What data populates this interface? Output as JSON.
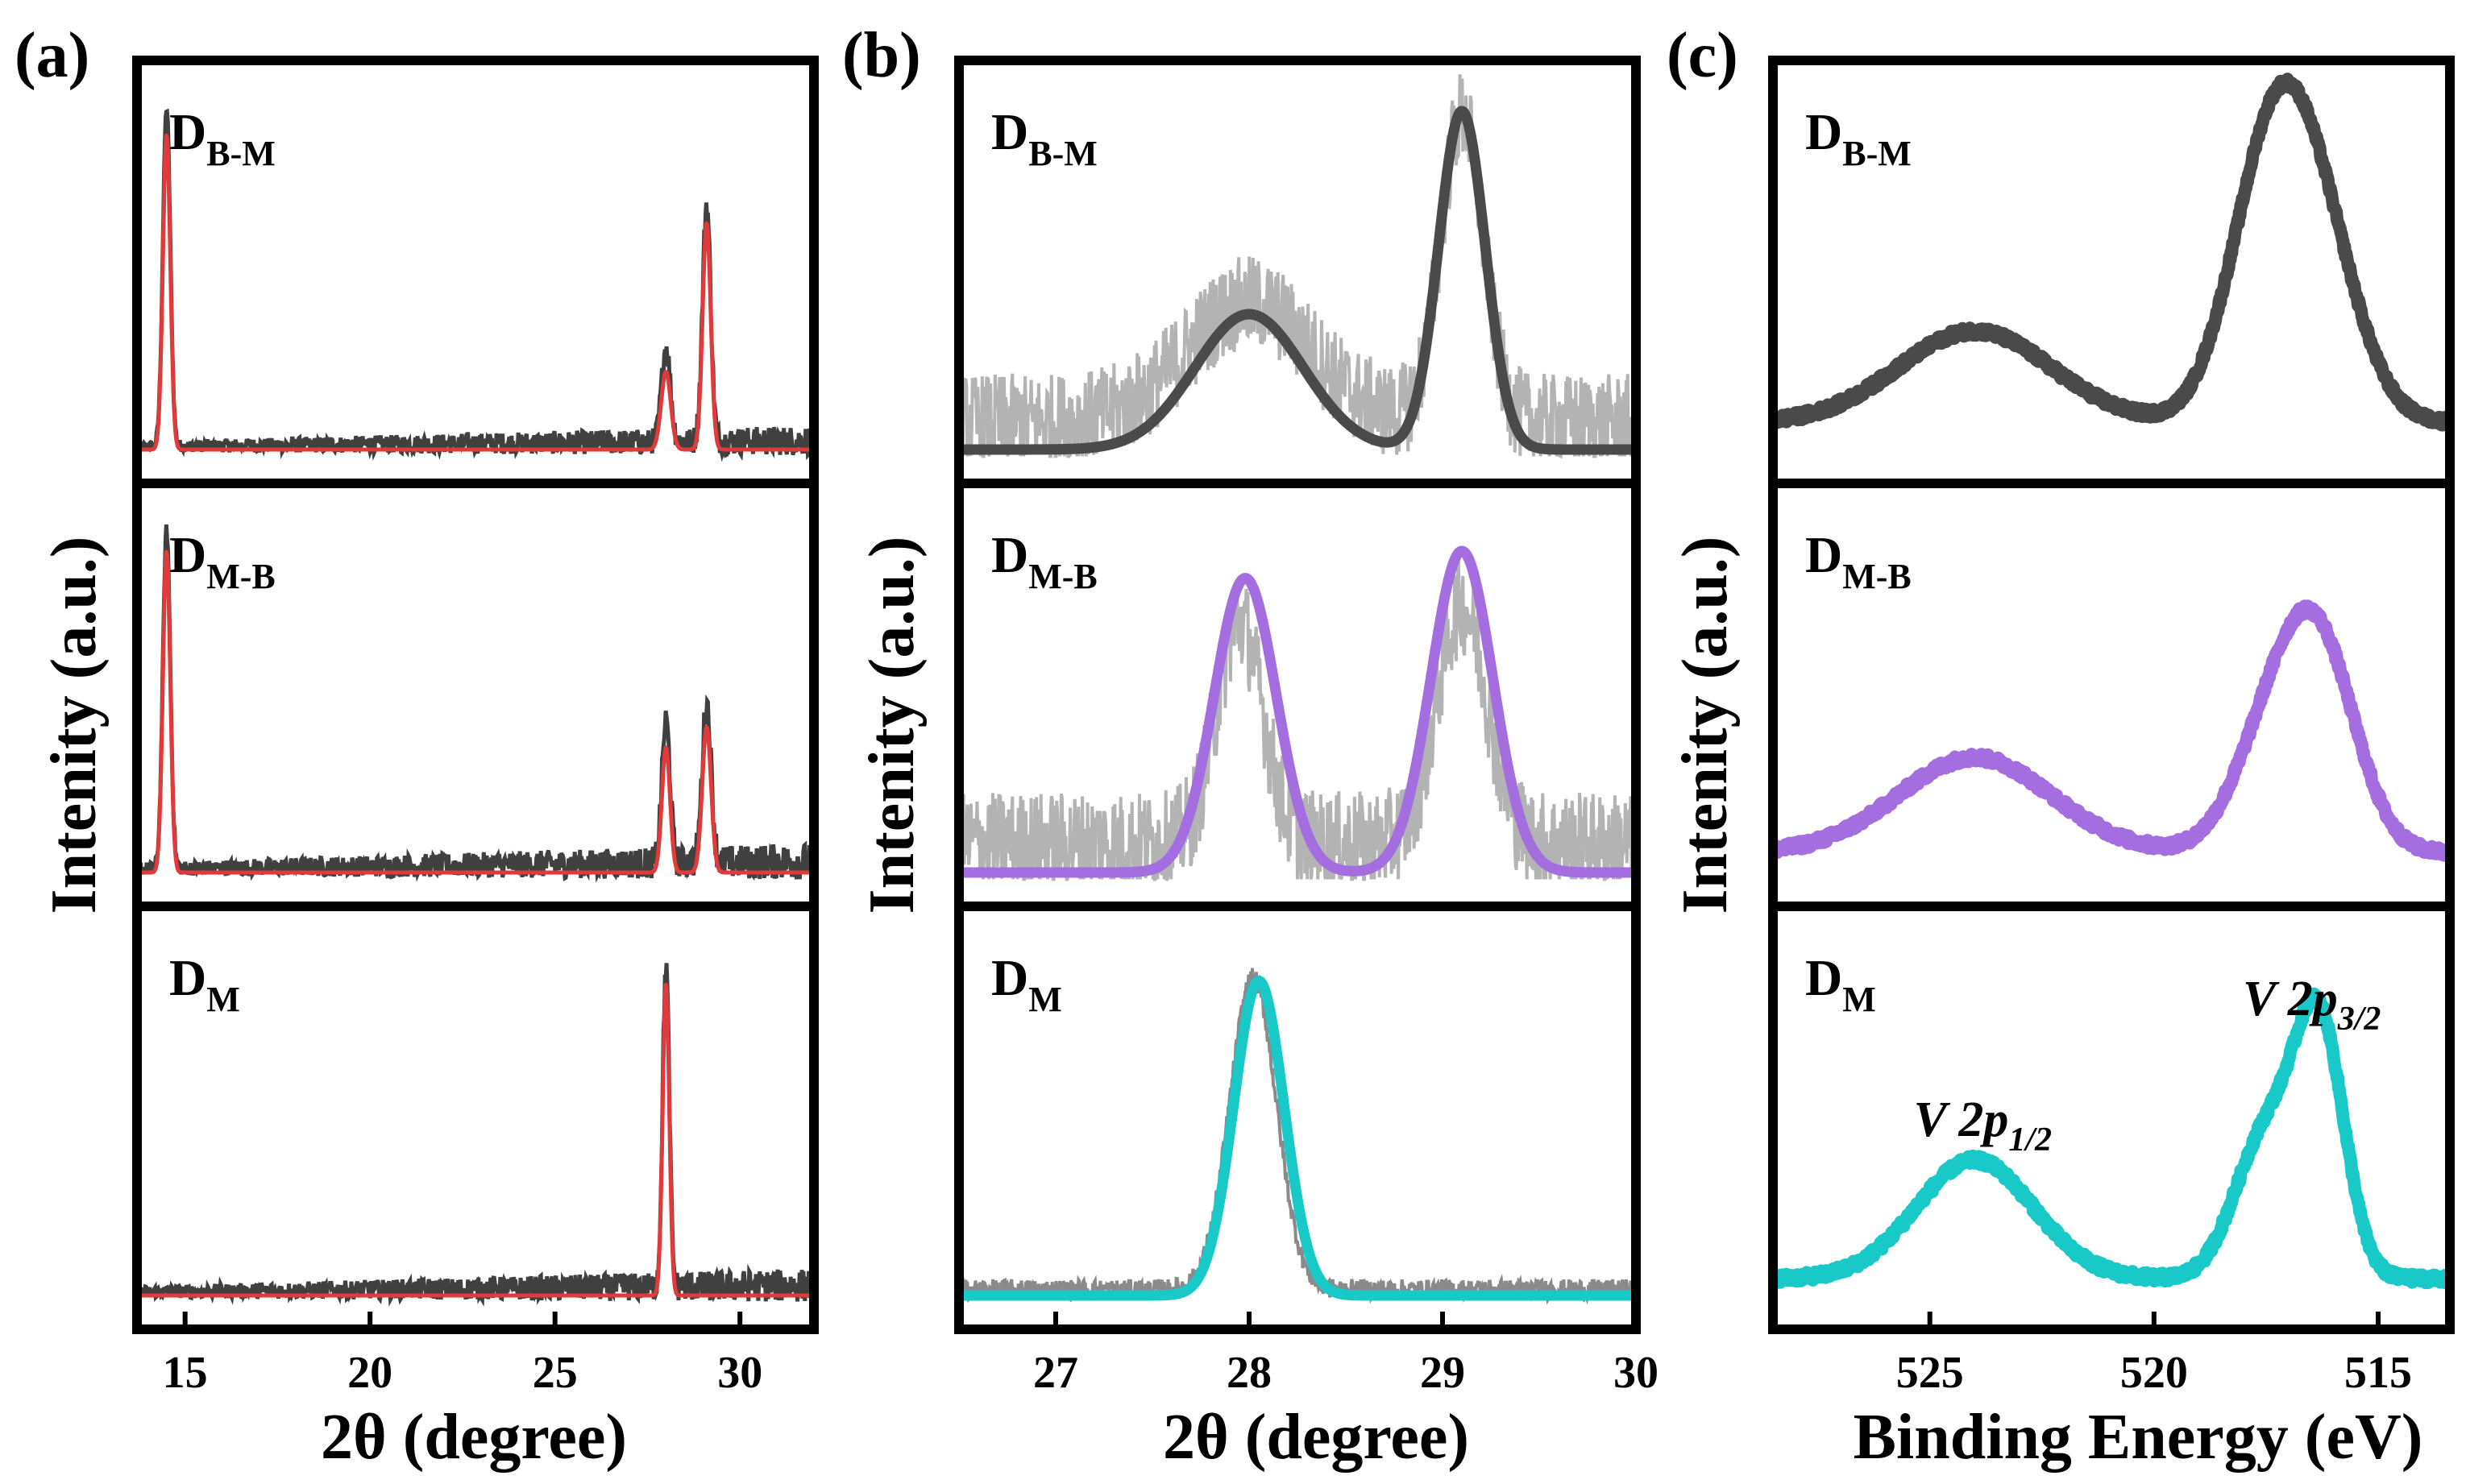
{
  "figure": {
    "panels": [
      {
        "letter": "(a)"
      },
      {
        "letter": "(b)"
      },
      {
        "letter": "(c)"
      }
    ]
  },
  "colors": {
    "frame": "#000000",
    "raw_dark": "#404040",
    "raw_light": "#b3b3b3",
    "red_fit": "#e03a3a",
    "gray_fit": "#4a4a4a",
    "purple": "#a56ee0",
    "teal": "#19c9c7"
  },
  "chart_data": [
    {
      "panel": "(a)",
      "type": "line",
      "xlabel": "2θ (degree)",
      "ylabel": "Intenity (a.u.)",
      "xlim": [
        13.7,
        32.0
      ],
      "xticks": [
        15,
        20,
        25,
        30
      ],
      "xtick_labels": [
        "15",
        "20",
        "25",
        "30"
      ],
      "subpanels": [
        {
          "label_main": "D",
          "label_sub": "B-M",
          "raw": {
            "noise": 0.09,
            "peaks": [
              {
                "c": 14.5,
                "h": 1.0,
                "w": 0.1
              },
              {
                "c": 28.0,
                "h": 0.28,
                "w": 0.12
              },
              {
                "c": 29.1,
                "h": 0.7,
                "w": 0.11
              }
            ]
          },
          "fit_peaks": [
            {
              "c": 14.5,
              "h": 0.93,
              "w": 0.1
            },
            {
              "c": 28.0,
              "h": 0.23,
              "w": 0.13
            },
            {
              "c": 29.1,
              "h": 0.67,
              "w": 0.11
            }
          ],
          "fit_color": "#e03a3a",
          "raw_color": "#404040"
        },
        {
          "label_main": "D",
          "label_sub": "M-B",
          "raw": {
            "noise": 0.11,
            "peaks": [
              {
                "c": 14.5,
                "h": 1.0,
                "w": 0.1
              },
              {
                "c": 28.0,
                "h": 0.42,
                "w": 0.11
              },
              {
                "c": 29.1,
                "h": 0.47,
                "w": 0.12
              }
            ]
          },
          "fit_peaks": [
            {
              "c": 14.5,
              "h": 0.95,
              "w": 0.1
            },
            {
              "c": 28.0,
              "h": 0.37,
              "w": 0.11
            },
            {
              "c": 29.1,
              "h": 0.43,
              "w": 0.12
            }
          ],
          "fit_color": "#e03a3a",
          "raw_color": "#404040"
        },
        {
          "label_main": "D",
          "label_sub": "M",
          "raw": {
            "noise": 0.1,
            "peaks": [
              {
                "c": 28.0,
                "h": 0.95,
                "w": 0.09
              }
            ]
          },
          "fit_peaks": [
            {
              "c": 28.0,
              "h": 0.92,
              "w": 0.09
            }
          ],
          "fit_color": "#e03a3a",
          "raw_color": "#404040"
        }
      ]
    },
    {
      "panel": "(b)",
      "type": "line",
      "xlabel": "2θ (degree)",
      "ylabel": "Intenity (a.u.)",
      "xlim": [
        26.5,
        30.0
      ],
      "xticks": [
        27,
        28,
        29,
        30
      ],
      "xtick_labels": [
        "27",
        "28",
        "29",
        "30"
      ],
      "subpanels": [
        {
          "label_main": "D",
          "label_sub": "B-M",
          "raw": {
            "noise": 0.28,
            "peaks": [
              {
                "c": 28.0,
                "h": 0.35,
                "w": 0.32
              },
              {
                "c": 29.1,
                "h": 0.9,
                "w": 0.11
              }
            ]
          },
          "fit_peaks": [
            {
              "c": 28.0,
              "h": 0.4,
              "w": 0.28
            },
            {
              "c": 29.1,
              "h": 1.0,
              "w": 0.12
            }
          ],
          "fit_color": "#4a4a4a",
          "raw_color": "#b3b3b3"
        },
        {
          "label_main": "D",
          "label_sub": "M-B",
          "raw": {
            "noise": 0.3,
            "peaks": [
              {
                "c": 27.95,
                "h": 0.65,
                "w": 0.12
              },
              {
                "c": 29.1,
                "h": 0.7,
                "w": 0.13
              }
            ]
          },
          "fit_peaks": [
            {
              "c": 27.98,
              "h": 0.87,
              "w": 0.16
            },
            {
              "c": 29.1,
              "h": 0.95,
              "w": 0.16
            }
          ],
          "fit_color": "#a56ee0",
          "raw_color": "#b3b3b3"
        },
        {
          "label_main": "D",
          "label_sub": "M",
          "raw": {
            "noise": 0.06,
            "peaks": [
              {
                "c": 28.02,
                "h": 0.92,
                "w": 0.12
              }
            ]
          },
          "fit_peaks": [
            {
              "c": 28.05,
              "h": 0.93,
              "w": 0.13
            }
          ],
          "fit_color": "#19c9c7",
          "raw_color": "#8a8a8a"
        }
      ]
    },
    {
      "panel": "(c)",
      "type": "line",
      "xlabel": "Binding Energy (eV)",
      "ylabel": "Intenity (a.u.)",
      "xlim": [
        528.5,
        513.4
      ],
      "xticks": [
        525,
        520,
        515
      ],
      "xtick_labels": [
        "525",
        "520",
        "515"
      ],
      "annotations": [
        {
          "text": "V 2p",
          "sub": "1/2",
          "x": 524.0
        },
        {
          "text": "V 2p",
          "sub": "3/2",
          "x": 516.3
        }
      ],
      "subpanels": [
        {
          "label_main": "D",
          "label_sub": "B-M",
          "curve": {
            "base": 0.08,
            "peaks": [
              {
                "c": 524.0,
                "h": 0.27,
                "w": 1.7
              },
              {
                "c": 517.4,
                "h": 0.74,
                "w": 0.9
              },
              {
                "c": 516.3,
                "h": 0.45,
                "w": 0.9
              }
            ]
          },
          "color": "#4a4a4a"
        },
        {
          "label_main": "D",
          "label_sub": "M-B",
          "curve": {
            "base": 0.06,
            "peaks": [
              {
                "c": 524.0,
                "h": 0.28,
                "w": 1.7
              },
              {
                "c": 517.2,
                "h": 0.4,
                "w": 0.9
              },
              {
                "c": 516.2,
                "h": 0.45,
                "w": 0.8
              }
            ]
          },
          "color": "#a56ee0"
        },
        {
          "label_main": "D",
          "label_sub": "M",
          "curve": {
            "base": 0.05,
            "peaks": [
              {
                "c": 524.0,
                "h": 0.35,
                "w": 1.3
              },
              {
                "c": 517.5,
                "h": 0.42,
                "w": 0.7
              },
              {
                "c": 516.3,
                "h": 0.72,
                "w": 0.55
              }
            ]
          },
          "color": "#19c9c7"
        }
      ]
    }
  ]
}
